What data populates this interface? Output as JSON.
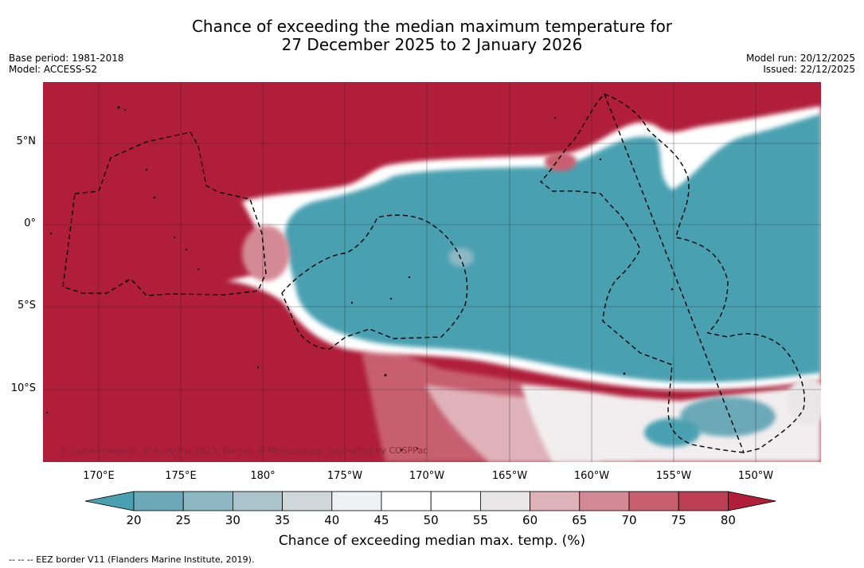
{
  "title_line1": "Chance of exceeding the median maximum temperature for",
  "title_line2": "27 December 2025 to 2 January 2026",
  "base_period": "Base period: 1981-2018",
  "model": "Model: ACCESS-S2",
  "model_run": "Model run: 20/12/2025",
  "issued": "Issued: 22/12/2025",
  "lat_labels": [
    "5°N",
    "0°",
    "5°S",
    "10°S"
  ],
  "lon_labels": [
    "170°E",
    "175°E",
    "180°",
    "175°W",
    "170°W",
    "165°W",
    "160°W",
    "155°W",
    "150°W"
  ],
  "copyright": "© Commonwealth of Australia 2025, Bureau of Meteorology, supported by COSPPac",
  "colorbar": {
    "ticks": [
      "20",
      "25",
      "30",
      "35",
      "40",
      "45",
      "50",
      "55",
      "60",
      "65",
      "70",
      "75",
      "80"
    ],
    "colors": [
      "#4aa0b1",
      "#6ca9b8",
      "#8bb8c3",
      "#abc4cb",
      "#cfd7da",
      "#edf1f3",
      "#ffffff",
      "#ffffff",
      "#e9e6e7",
      "#dfb2b9",
      "#d48a95",
      "#c75f6f",
      "#bb3e52",
      "#b01e3a"
    ],
    "title": "Chance of exceeding median max. temp. (%)"
  },
  "footnote": "--  --  -- EEZ border V11 (Flanders Marine Institute, 2019).",
  "colors": {
    "warm": "#b01e3a",
    "cool": "#4aa0b1"
  }
}
